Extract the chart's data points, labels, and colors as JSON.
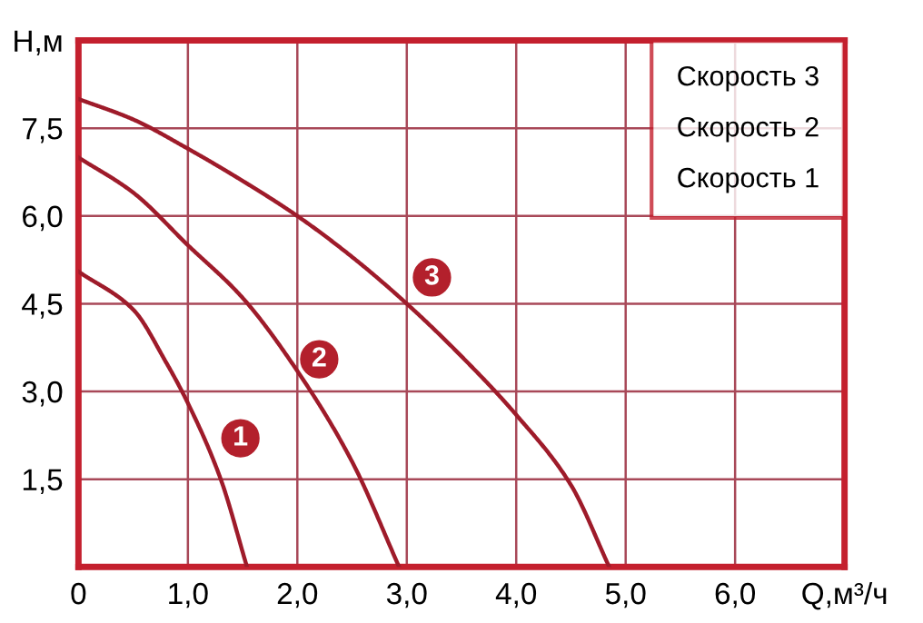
{
  "chart_data": {
    "type": "line",
    "series": [
      {
        "name": "Скорость 3",
        "color": "#9e1b2a",
        "x": [
          0,
          0.5,
          1,
          1.5,
          2,
          2.5,
          3,
          3.5,
          4,
          4.5,
          4.85
        ],
        "values": [
          8.0,
          7.65,
          7.15,
          6.6,
          6.0,
          5.3,
          4.5,
          3.6,
          2.6,
          1.4,
          0
        ]
      },
      {
        "name": "Скорость 2",
        "color": "#9e1b2a",
        "x": [
          0,
          0.5,
          1,
          1.5,
          2,
          2.5,
          2.93
        ],
        "values": [
          7.0,
          6.4,
          5.5,
          4.6,
          3.35,
          1.8,
          0
        ]
      },
      {
        "name": "Скорость 1",
        "color": "#9e1b2a",
        "x": [
          0,
          0.5,
          0.8,
          1,
          1.3,
          1.54
        ],
        "values": [
          5.05,
          4.4,
          3.5,
          2.8,
          1.5,
          0
        ]
      }
    ],
    "annotations": [
      {
        "text": "1",
        "x": 1.48,
        "y": 2.2
      },
      {
        "text": "2",
        "x": 2.2,
        "y": 3.55
      },
      {
        "text": "3",
        "x": 3.23,
        "y": 4.95
      }
    ],
    "xlim": [
      0,
      7
    ],
    "ylim": [
      0,
      9
    ],
    "xticks": [
      0,
      {
        "value": 1,
        "label": "1,0"
      },
      {
        "value": 2,
        "label": "2,0"
      },
      {
        "value": 3,
        "label": "3,0"
      },
      {
        "value": 4,
        "label": "4,0"
      },
      {
        "value": 5,
        "label": "5,0"
      },
      {
        "value": 6,
        "label": "6,0"
      },
      {
        "value": 7,
        "label": "Q,м³/ч"
      }
    ],
    "yticks": [
      {
        "value": 1.5,
        "label": "1,5"
      },
      {
        "value": 3,
        "label": "3,0"
      },
      {
        "value": 4.5,
        "label": "4,5"
      },
      {
        "value": 6,
        "label": "6,0"
      },
      {
        "value": 7.5,
        "label": "7,5"
      },
      {
        "value": 9,
        "label": "Н,м"
      }
    ],
    "grid": true,
    "legend": "top right",
    "marker": "none",
    "line_style": "solid"
  }
}
